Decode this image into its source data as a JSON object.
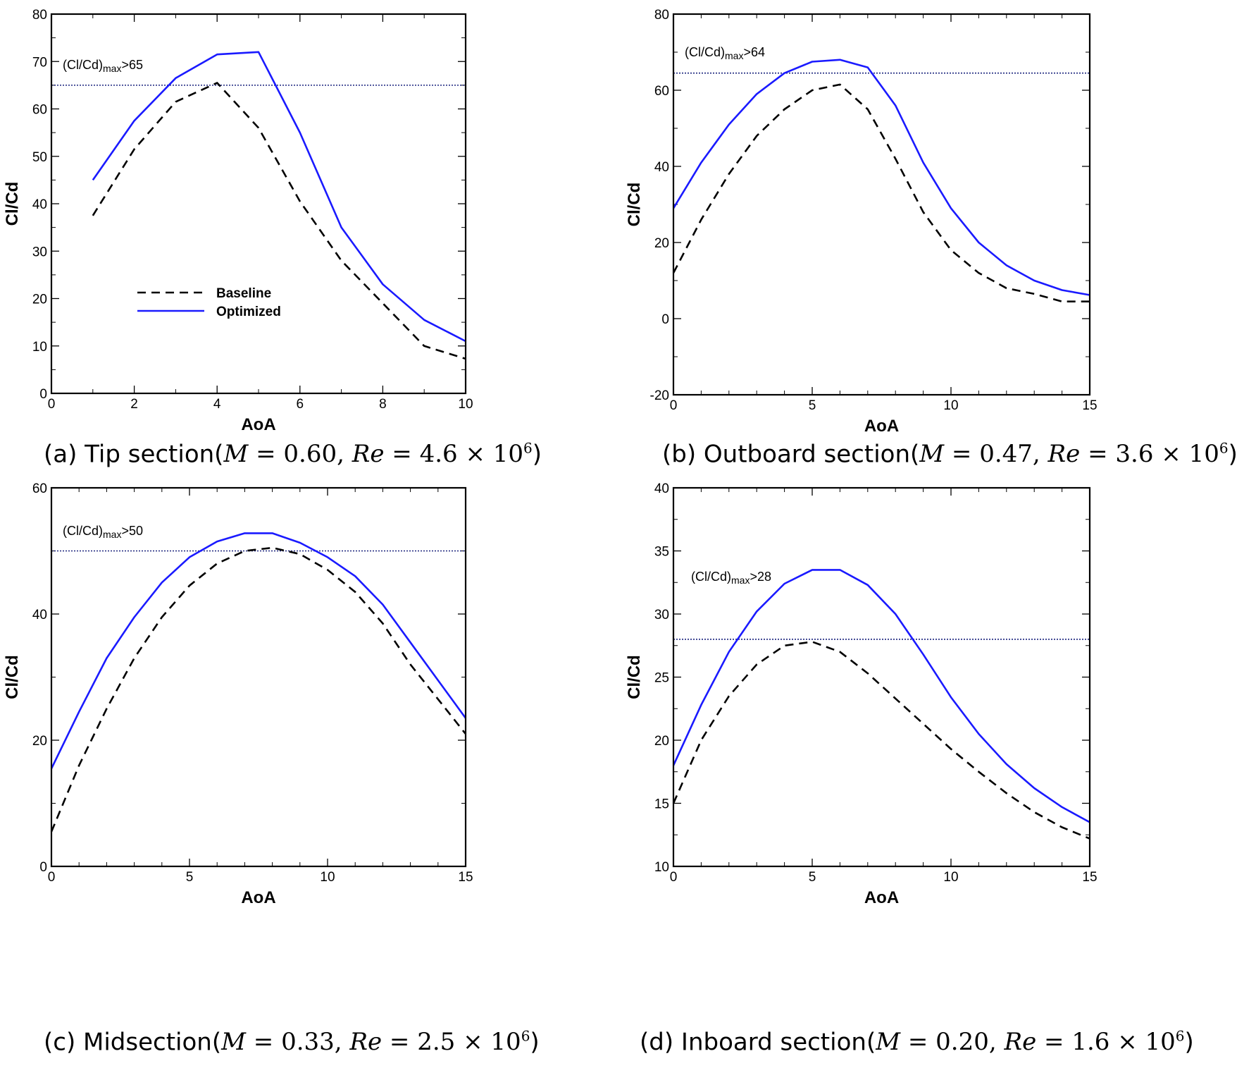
{
  "colors": {
    "baseline": "#000000",
    "optimized": "#1a1aff",
    "reference": "#1a237e"
  },
  "legend": {
    "baseline": "Baseline",
    "optimized": "Optimized"
  },
  "captions": [
    {
      "prefix": "(a) Tip section(",
      "M": "0.60",
      "Re": "4.6",
      "exp": "6",
      "suffix": ")"
    },
    {
      "prefix": "(b) Outboard section(",
      "M": "0.47",
      "Re": "3.6",
      "exp": "6",
      "suffix": ")"
    },
    {
      "prefix": "(c) Midsection(",
      "M": "0.33",
      "Re": "2.5",
      "exp": "6",
      "suffix": ")"
    },
    {
      "prefix": "(d) Inboard section(",
      "M": "0.20",
      "Re": "1.6",
      "exp": "6",
      "suffix": ")"
    }
  ],
  "chart_data": [
    {
      "type": "line",
      "xlabel": "AoA",
      "ylabel": "Cl/Cd",
      "xlim": [
        0,
        10
      ],
      "ylim": [
        0,
        80
      ],
      "xticks": [
        0,
        2,
        4,
        6,
        8,
        10
      ],
      "yticks": [
        0,
        10,
        20,
        30,
        40,
        50,
        60,
        70,
        80
      ],
      "annotation": {
        "main": "(Cl/Cd)",
        "sub": "max",
        "suffix": ">65",
        "y": 65
      },
      "legend_shown": true,
      "series": [
        {
          "name": "Baseline",
          "x": [
            1,
            2,
            3,
            4,
            5,
            6,
            7,
            8,
            9,
            10
          ],
          "y": [
            37.5,
            51.5,
            61.5,
            65.5,
            56,
            40.5,
            28,
            19,
            10,
            7.3
          ]
        },
        {
          "name": "Optimized",
          "x": [
            1,
            2,
            3,
            4,
            5,
            6,
            7,
            8,
            9,
            10
          ],
          "y": [
            45,
            57.5,
            66.5,
            71.5,
            72,
            55,
            35,
            23,
            15.5,
            11
          ]
        }
      ]
    },
    {
      "type": "line",
      "xlabel": "AoA",
      "ylabel": "Cl/Cd",
      "xlim": [
        0,
        15
      ],
      "ylim": [
        -20,
        80
      ],
      "xticks": [
        0,
        5,
        10,
        15
      ],
      "yticks": [
        -20,
        0,
        20,
        40,
        60,
        80
      ],
      "annotation": {
        "main": "(Cl/Cd)",
        "sub": "max",
        "suffix": ">64",
        "y": 64.5
      },
      "legend_shown": false,
      "series": [
        {
          "name": "Baseline",
          "x": [
            0,
            1,
            2,
            3,
            4,
            5,
            6,
            7,
            8,
            9,
            10,
            11,
            12,
            13,
            14,
            15
          ],
          "y": [
            12,
            26,
            38,
            48,
            55,
            60,
            61.5,
            55,
            42,
            28,
            18,
            12,
            8,
            6.5,
            4.5,
            4.5
          ]
        },
        {
          "name": "Optimized",
          "x": [
            0,
            1,
            2,
            3,
            4,
            5,
            6,
            7,
            8,
            9,
            10,
            11,
            12,
            13,
            14,
            15
          ],
          "y": [
            29,
            41,
            51,
            59,
            64.5,
            67.5,
            68,
            66,
            56,
            41,
            29,
            20,
            14,
            10,
            7.5,
            6.2
          ]
        }
      ]
    },
    {
      "type": "line",
      "xlabel": "AoA",
      "ylabel": "Cl/Cd",
      "xlim": [
        0,
        15
      ],
      "ylim": [
        0,
        60
      ],
      "xticks": [
        0,
        5,
        10,
        15
      ],
      "yticks": [
        0,
        20,
        40,
        60
      ],
      "annotation": {
        "main": "(Cl/Cd)",
        "sub": "max",
        "suffix": ">50",
        "y": 50
      },
      "legend_shown": false,
      "series": [
        {
          "name": "Baseline",
          "x": [
            0,
            1,
            2,
            3,
            4,
            5,
            6,
            7,
            8,
            9,
            10,
            11,
            12,
            13,
            14,
            15
          ],
          "y": [
            5.5,
            16,
            25,
            33,
            39.5,
            44.5,
            48,
            50,
            50.5,
            49.5,
            47,
            43.5,
            38.5,
            32,
            26.5,
            21
          ]
        },
        {
          "name": "Optimized",
          "x": [
            0,
            1,
            2,
            3,
            4,
            5,
            6,
            7,
            8,
            9,
            10,
            11,
            12,
            13,
            14,
            15
          ],
          "y": [
            15.5,
            24.5,
            33,
            39.5,
            45,
            49,
            51.5,
            52.8,
            52.8,
            51.3,
            49,
            46,
            41.5,
            35.5,
            29.5,
            23.5
          ]
        }
      ]
    },
    {
      "type": "line",
      "xlabel": "AoA",
      "ylabel": "Cl/Cd",
      "xlim": [
        0,
        15
      ],
      "ylim": [
        10,
        40
      ],
      "xticks": [
        0,
        5,
        10,
        15
      ],
      "yticks": [
        10,
        15,
        20,
        25,
        30,
        35,
        40
      ],
      "annotation": {
        "main": "(Cl/Cd)",
        "sub": "max",
        "suffix": ">28",
        "y": 28
      },
      "legend_shown": false,
      "series": [
        {
          "name": "Baseline",
          "x": [
            0,
            1,
            2,
            3,
            4,
            5,
            6,
            7,
            8,
            9,
            10,
            11,
            12,
            13,
            14,
            15
          ],
          "y": [
            15,
            20,
            23.5,
            26,
            27.5,
            27.8,
            27,
            25.3,
            23.3,
            21.3,
            19.3,
            17.5,
            15.8,
            14.3,
            13.1,
            12.2
          ]
        },
        {
          "name": "Optimized",
          "x": [
            0,
            1,
            2,
            3,
            4,
            5,
            6,
            7,
            8,
            9,
            10,
            11,
            12,
            13,
            14,
            15
          ],
          "y": [
            18,
            22.8,
            27,
            30.2,
            32.4,
            33.5,
            33.5,
            32.3,
            30,
            26.8,
            23.4,
            20.5,
            18.1,
            16.2,
            14.7,
            13.5
          ]
        }
      ]
    }
  ]
}
